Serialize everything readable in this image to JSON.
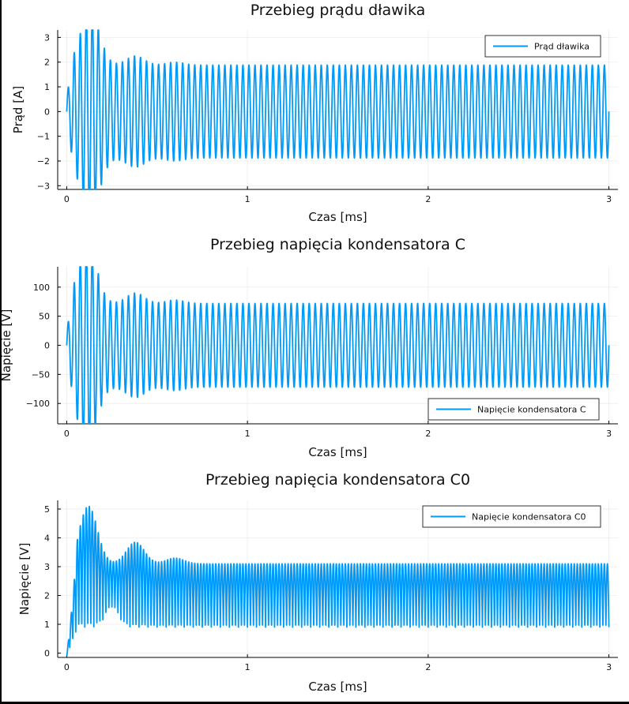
{
  "accent_color": "#009afa",
  "chart_data": [
    {
      "type": "line",
      "title": "Przebieg prądu dławika",
      "xlabel": "Czas [ms]",
      "ylabel": "Prąd [A]",
      "xlim": [
        -0.05,
        3.05
      ],
      "ylim": [
        -3.15,
        3.3
      ],
      "xticks": [
        0,
        1,
        2,
        3
      ],
      "xtick_labels": [
        "0",
        "1",
        "2",
        "3"
      ],
      "yticks": [
        -3,
        -2,
        -1,
        0,
        1,
        2,
        3
      ],
      "ytick_labels": [
        "−3",
        "−2",
        "−1",
        "0",
        "1",
        "2",
        "3"
      ],
      "grid": true,
      "legend_position": "top-right",
      "series": [
        {
          "name": "Prąd dławika",
          "color": "#009afa",
          "waveform": {
            "kind": "damped_oscillation_to_steady_state",
            "frequency_kHz": 30,
            "t_end_ms": 3,
            "initial_value": 0,
            "offset": 0,
            "steady_amplitude": 1.88,
            "transient_peaks": [
              {
                "t": 0.12,
                "value": 3.1
              },
              {
                "t": 0.14,
                "value": -3.0
              },
              {
                "t": 0.38,
                "value": 2.25
              },
              {
                "t": 0.6,
                "value": 2.0
              }
            ]
          }
        }
      ]
    },
    {
      "type": "line",
      "title": "Przebieg napięcia kondensatora C",
      "xlabel": "Czas [ms]",
      "ylabel": "Napięcie [V]",
      "xlim": [
        -0.05,
        3.05
      ],
      "ylim": [
        -135,
        135
      ],
      "xticks": [
        0,
        1,
        2,
        3
      ],
      "xtick_labels": [
        "0",
        "1",
        "2",
        "3"
      ],
      "yticks": [
        -100,
        -50,
        0,
        50,
        100
      ],
      "ytick_labels": [
        "−100",
        "−50",
        "0",
        "50",
        "100"
      ],
      "grid": true,
      "legend_position": "bottom-right",
      "series": [
        {
          "name": "Napięcie kondensatora C",
          "color": "#009afa",
          "waveform": {
            "kind": "damped_oscillation_to_steady_state",
            "frequency_kHz": 30,
            "t_end_ms": 3,
            "initial_value": 0,
            "offset": 0,
            "steady_amplitude": 72,
            "transient_peaks": [
              {
                "t": 0.12,
                "value": 125
              },
              {
                "t": 0.11,
                "value": -125
              },
              {
                "t": 0.38,
                "value": 90
              },
              {
                "t": 0.6,
                "value": 78
              }
            ]
          }
        }
      ]
    },
    {
      "type": "line",
      "title": "Przebieg napięcia kondensatora C0",
      "xlabel": "Czas [ms]",
      "ylabel": "Napięcie [V]",
      "xlim": [
        -0.05,
        3.05
      ],
      "ylim": [
        -0.15,
        5.3
      ],
      "xticks": [
        0,
        1,
        2,
        3
      ],
      "xtick_labels": [
        "0",
        "1",
        "2",
        "3"
      ],
      "yticks": [
        0,
        1,
        2,
        3,
        4,
        5
      ],
      "ytick_labels": [
        "0",
        "1",
        "2",
        "3",
        "4",
        "5"
      ],
      "grid": true,
      "legend_position": "top-right",
      "series": [
        {
          "name": "Napięcie kondensatora C0",
          "color": "#009afa",
          "waveform": {
            "kind": "rectified_oscillation_with_slow_envelope",
            "frequency_kHz": 60,
            "t_end_ms": 3,
            "initial_value": -0.1,
            "steady_min": 0.9,
            "steady_max": 3.1,
            "transient_peaks": [
              {
                "t": 0.12,
                "value": 5.1
              },
              {
                "t": 0.25,
                "value": 0.8
              },
              {
                "t": 0.38,
                "value": 3.85
              },
              {
                "t": 0.6,
                "value": 3.3
              }
            ]
          }
        }
      ]
    }
  ]
}
